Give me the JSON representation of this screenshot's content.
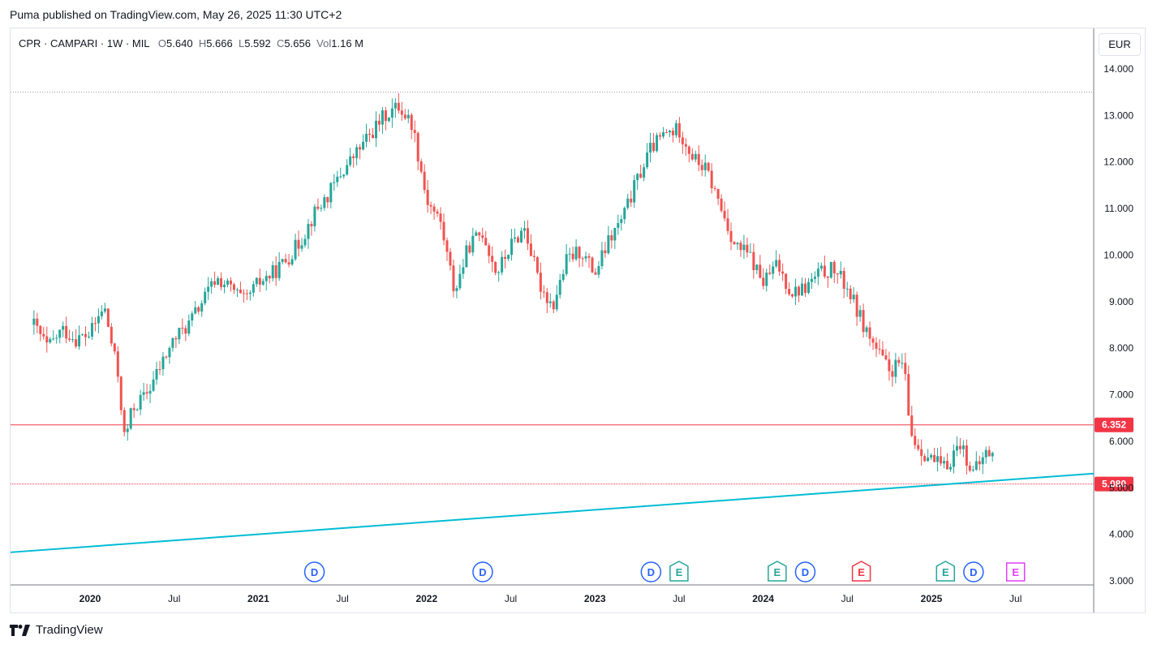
{
  "header": {
    "published": "Puma published on TradingView.com, May 26, 2025 11:30 UTC+2"
  },
  "legend": {
    "symbol": "CPR · CAMPARI · 1W · MIL",
    "o_label": "O",
    "o": "5.640",
    "h_label": "H",
    "h": "5.666",
    "l_label": "L",
    "l": "5.592",
    "c_label": "C",
    "c": "5.656",
    "vol_label": "Vol",
    "vol": "1.16 M"
  },
  "currency": "EUR",
  "footer": {
    "brand": "TradingView",
    "logo_icon": "tradingview-logo-icon"
  },
  "colors": {
    "up": "#26a69a",
    "down": "#ef5350",
    "trendline": "#00bcd4",
    "hline": "#f23645",
    "dividend": "#2962ff",
    "earnings_past_green": "#26a69a",
    "earnings_past_red": "#f23645",
    "earnings_future": "#e040fb"
  },
  "chart_data": {
    "type": "candlestick",
    "title": "",
    "xlabel": "",
    "ylabel": "",
    "ylim": [
      3.0,
      14.0
    ],
    "y_ticks": [
      "14.000",
      "13.000",
      "12.000",
      "11.000",
      "10.000",
      "9.000",
      "8.000",
      "7.000",
      "6.000",
      "5.000",
      "4.000",
      "3.000"
    ],
    "x_ticks": [
      {
        "label": "2020",
        "bold": true,
        "date": "2020-01"
      },
      {
        "label": "Jul",
        "bold": false,
        "date": "2020-07"
      },
      {
        "label": "2021",
        "bold": true,
        "date": "2021-01"
      },
      {
        "label": "Jul",
        "bold": false,
        "date": "2021-07"
      },
      {
        "label": "2022",
        "bold": true,
        "date": "2022-01"
      },
      {
        "label": "Jul",
        "bold": false,
        "date": "2022-07"
      },
      {
        "label": "2023",
        "bold": true,
        "date": "2023-01"
      },
      {
        "label": "Jul",
        "bold": false,
        "date": "2023-07"
      },
      {
        "label": "2024",
        "bold": true,
        "date": "2024-01"
      },
      {
        "label": "Jul",
        "bold": false,
        "date": "2024-07"
      },
      {
        "label": "2025",
        "bold": true,
        "date": "2025-01"
      },
      {
        "label": "Jul",
        "bold": false,
        "date": "2025-07"
      }
    ],
    "price_trend": [
      [
        "2019-09",
        8.5
      ],
      [
        "2019-10",
        8.0
      ],
      [
        "2019-11",
        8.4
      ],
      [
        "2019-12",
        8.2
      ],
      [
        "2020-01",
        8.3
      ],
      [
        "2020-02",
        8.9
      ],
      [
        "2020-03",
        7.4
      ],
      [
        "2020-03b",
        6.0
      ],
      [
        "2020-04",
        6.7
      ],
      [
        "2020-05",
        7.0
      ],
      [
        "2020-06",
        7.6
      ],
      [
        "2020-07",
        8.2
      ],
      [
        "2020-08",
        8.5
      ],
      [
        "2020-09",
        9.0
      ],
      [
        "2020-10",
        9.5
      ],
      [
        "2020-11",
        9.3
      ],
      [
        "2020-12",
        9.0
      ],
      [
        "2021-01",
        9.4
      ],
      [
        "2021-02",
        9.6
      ],
      [
        "2021-03",
        9.9
      ],
      [
        "2021-04",
        10.3
      ],
      [
        "2021-05",
        10.9
      ],
      [
        "2021-06",
        11.3
      ],
      [
        "2021-07",
        11.8
      ],
      [
        "2021-08",
        12.2
      ],
      [
        "2021-09",
        12.6
      ],
      [
        "2021-10",
        13.0
      ],
      [
        "2021-11",
        13.2
      ],
      [
        "2021-12",
        12.8
      ],
      [
        "2022-01",
        11.2
      ],
      [
        "2022-02",
        10.7
      ],
      [
        "2022-03",
        9.2
      ],
      [
        "2022-04",
        10.2
      ],
      [
        "2022-05",
        10.5
      ],
      [
        "2022-06",
        9.6
      ],
      [
        "2022-07",
        10.2
      ],
      [
        "2022-08",
        10.6
      ],
      [
        "2022-09",
        9.4
      ],
      [
        "2022-10",
        8.9
      ],
      [
        "2022-11",
        9.9
      ],
      [
        "2022-12",
        10.1
      ],
      [
        "2023-01",
        9.6
      ],
      [
        "2023-02",
        10.3
      ],
      [
        "2023-03",
        10.8
      ],
      [
        "2023-04",
        11.6
      ],
      [
        "2023-05",
        12.3
      ],
      [
        "2023-06",
        12.6
      ],
      [
        "2023-07",
        12.7
      ],
      [
        "2023-08",
        12.1
      ],
      [
        "2023-09",
        11.8
      ],
      [
        "2023-10",
        11.0
      ],
      [
        "2023-11",
        10.2
      ],
      [
        "2023-12",
        10.0
      ],
      [
        "2024-01",
        9.4
      ],
      [
        "2024-02",
        9.8
      ],
      [
        "2024-03",
        9.2
      ],
      [
        "2024-04",
        9.3
      ],
      [
        "2024-05",
        9.6
      ],
      [
        "2024-06",
        9.7
      ],
      [
        "2024-07",
        9.3
      ],
      [
        "2024-08",
        8.6
      ],
      [
        "2024-09",
        8.0
      ],
      [
        "2024-10",
        7.5
      ],
      [
        "2024-11",
        7.7
      ],
      [
        "2024-11b",
        6.2
      ],
      [
        "2024-12",
        5.9
      ],
      [
        "2025-01",
        5.6
      ],
      [
        "2025-02",
        5.4
      ],
      [
        "2025-03",
        6.0
      ],
      [
        "2025-04",
        5.3
      ],
      [
        "2025-05",
        5.8
      ],
      [
        "2025-05b",
        5.65
      ]
    ],
    "horizontal_lines": [
      {
        "value": 6.352,
        "label": "6.352",
        "style": "solid"
      },
      {
        "value": 5.08,
        "label": "5.080",
        "style": "dotted"
      },
      {
        "value": 13.5,
        "label": "",
        "style": "dotted-gray"
      }
    ],
    "trendline": {
      "start": {
        "date": "2019-09",
        "value": 3.65
      },
      "end": {
        "date": "2025-10",
        "value": 5.25
      }
    },
    "events": [
      {
        "type": "D",
        "date": "2021-05",
        "kind": "dividend"
      },
      {
        "type": "D",
        "date": "2022-05",
        "kind": "dividend"
      },
      {
        "type": "D",
        "date": "2023-05",
        "kind": "dividend"
      },
      {
        "type": "E",
        "date": "2023-07",
        "kind": "earnings-green"
      },
      {
        "type": "E",
        "date": "2024-02",
        "kind": "earnings-green"
      },
      {
        "type": "D",
        "date": "2024-04",
        "kind": "dividend"
      },
      {
        "type": "E",
        "date": "2024-08",
        "kind": "earnings-red"
      },
      {
        "type": "E",
        "date": "2025-02",
        "kind": "earnings-green"
      },
      {
        "type": "D",
        "date": "2025-04",
        "kind": "dividend"
      },
      {
        "type": "E",
        "date": "2025-07",
        "kind": "earnings-future"
      }
    ]
  }
}
